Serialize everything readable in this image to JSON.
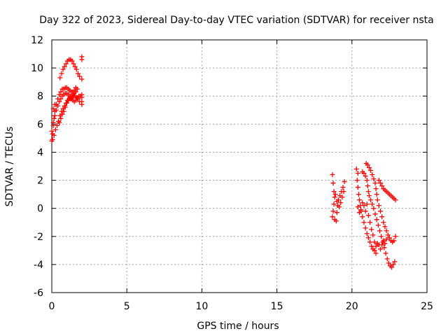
{
  "chart_data": {
    "type": "scatter",
    "title": "Day 322 of 2023, Sidereal Day-to-day VTEC variation (SDTVAR) for receiver nsta",
    "xlabel": "GPS time / hours",
    "ylabel": "SDTVAR / TECUs",
    "xlim": [
      0,
      25
    ],
    "ylim": [
      -6,
      12
    ],
    "xticks": [
      0,
      5,
      10,
      15,
      20,
      25
    ],
    "yticks": [
      -6,
      -4,
      -2,
      0,
      2,
      4,
      6,
      8,
      10,
      12
    ],
    "xtick_labels": [
      "0",
      "5",
      "10",
      "15",
      "20",
      "25"
    ],
    "ytick_labels": [
      "-6",
      "-4",
      "-2",
      "0",
      "2",
      "4",
      "6",
      "8",
      "10",
      "12"
    ],
    "grid": true,
    "marker": "+",
    "color": "#ff0000",
    "series": [
      {
        "points": [
          [
            0.0,
            4.8
          ],
          [
            0.05,
            5.3
          ],
          [
            0.1,
            5.9
          ],
          [
            0.15,
            6.4
          ],
          [
            0.2,
            6.9
          ],
          [
            0.3,
            7.4
          ],
          [
            0.4,
            7.8
          ],
          [
            0.5,
            8.1
          ],
          [
            0.6,
            8.3
          ],
          [
            0.7,
            8.5
          ],
          [
            0.8,
            8.5
          ],
          [
            0.9,
            8.6
          ],
          [
            1.0,
            8.6
          ],
          [
            1.1,
            8.5
          ],
          [
            1.2,
            8.4
          ],
          [
            1.3,
            8.3
          ],
          [
            1.4,
            8.3
          ],
          [
            1.5,
            8.4
          ],
          [
            1.6,
            8.6
          ],
          [
            1.7,
            8.5
          ],
          [
            0.0,
            5.5
          ],
          [
            0.1,
            6.1
          ],
          [
            0.2,
            6.6
          ],
          [
            0.3,
            7.0
          ],
          [
            0.4,
            7.3
          ],
          [
            0.5,
            7.6
          ],
          [
            0.6,
            7.8
          ],
          [
            0.7,
            8.0
          ],
          [
            0.8,
            8.1
          ],
          [
            0.9,
            8.2
          ],
          [
            1.0,
            8.2
          ],
          [
            1.1,
            8.1
          ],
          [
            1.2,
            8.0
          ],
          [
            1.3,
            7.8
          ],
          [
            1.4,
            7.7
          ],
          [
            1.5,
            7.6
          ],
          [
            1.6,
            7.7
          ],
          [
            1.7,
            7.9
          ],
          [
            1.8,
            8.0
          ],
          [
            1.9,
            8.0
          ],
          [
            2.0,
            7.9
          ],
          [
            0.05,
            4.9
          ],
          [
            0.15,
            5.2
          ],
          [
            0.25,
            5.6
          ],
          [
            0.35,
            5.9
          ],
          [
            0.45,
            6.2
          ],
          [
            0.55,
            6.6
          ],
          [
            0.65,
            6.9
          ],
          [
            0.75,
            7.1
          ],
          [
            0.85,
            7.3
          ],
          [
            0.95,
            7.5
          ],
          [
            1.05,
            7.7
          ],
          [
            1.15,
            7.8
          ],
          [
            1.25,
            7.8
          ],
          [
            1.35,
            7.9
          ],
          [
            1.45,
            8.0
          ],
          [
            1.55,
            8.0
          ],
          [
            1.65,
            7.9
          ],
          [
            1.75,
            7.8
          ],
          [
            1.85,
            7.6
          ],
          [
            0.5,
            6.1
          ],
          [
            0.6,
            6.4
          ],
          [
            0.7,
            6.7
          ],
          [
            0.8,
            6.9
          ],
          [
            0.9,
            7.2
          ],
          [
            1.0,
            7.5
          ],
          [
            1.1,
            7.7
          ],
          [
            1.2,
            7.9
          ],
          [
            1.3,
            8.0
          ],
          [
            1.4,
            8.1
          ],
          [
            1.5,
            8.2
          ],
          [
            1.6,
            8.3
          ],
          [
            0.55,
            9.3
          ],
          [
            0.65,
            9.6
          ],
          [
            0.75,
            9.9
          ],
          [
            0.85,
            10.1
          ],
          [
            0.95,
            10.3
          ],
          [
            1.05,
            10.5
          ],
          [
            1.15,
            10.6
          ],
          [
            1.25,
            10.6
          ],
          [
            1.35,
            10.5
          ],
          [
            1.45,
            10.3
          ],
          [
            1.55,
            10.1
          ],
          [
            1.65,
            9.9
          ],
          [
            1.75,
            9.6
          ],
          [
            1.85,
            9.4
          ],
          [
            2.0,
            10.8
          ],
          [
            2.0,
            10.6
          ],
          [
            2.0,
            9.2
          ],
          [
            2.0,
            8.1
          ],
          [
            2.0,
            7.6
          ],
          [
            2.0,
            7.4
          ],
          [
            0.1,
            7.1
          ],
          [
            0.2,
            7.4
          ]
        ]
      },
      {
        "points": [
          [
            18.7,
            2.4
          ],
          [
            18.75,
            1.8
          ],
          [
            18.8,
            1.2
          ],
          [
            18.85,
            0.8
          ],
          [
            18.8,
            0.3
          ],
          [
            18.75,
            -0.2
          ],
          [
            18.7,
            -0.6
          ],
          [
            18.85,
            -0.8
          ],
          [
            18.95,
            -0.9
          ],
          [
            19.0,
            -0.3
          ],
          [
            19.05,
            0.2
          ],
          [
            19.1,
            0.6
          ],
          [
            19.2,
            0.9
          ],
          [
            19.3,
            1.2
          ],
          [
            19.4,
            1.5
          ],
          [
            19.5,
            1.9
          ],
          [
            19.45,
            1.2
          ],
          [
            19.35,
            0.8
          ],
          [
            19.25,
            0.4
          ],
          [
            19.15,
            0.1
          ],
          [
            19.0,
            0.5
          ],
          [
            18.9,
            1.0
          ],
          [
            20.3,
            2.8
          ],
          [
            20.4,
            2.5
          ],
          [
            20.35,
            2.0
          ],
          [
            20.4,
            1.5
          ],
          [
            20.45,
            1.0
          ],
          [
            20.5,
            0.6
          ],
          [
            20.55,
            0.2
          ],
          [
            20.6,
            -0.2
          ],
          [
            20.7,
            -0.6
          ],
          [
            20.8,
            -1.0
          ],
          [
            20.9,
            -1.4
          ],
          [
            21.0,
            -1.8
          ],
          [
            21.1,
            -2.1
          ],
          [
            21.2,
            -2.4
          ],
          [
            21.3,
            -2.7
          ],
          [
            21.4,
            -2.9
          ],
          [
            21.5,
            -3.0
          ],
          [
            21.6,
            -3.2
          ],
          [
            20.7,
            2.6
          ],
          [
            20.8,
            2.5
          ],
          [
            20.9,
            2.3
          ],
          [
            21.0,
            2.0
          ],
          [
            21.05,
            1.6
          ],
          [
            21.1,
            1.2
          ],
          [
            21.15,
            0.9
          ],
          [
            21.25,
            0.6
          ],
          [
            21.35,
            0.3
          ],
          [
            21.45,
            0.0
          ],
          [
            21.55,
            -0.4
          ],
          [
            21.65,
            -0.8
          ],
          [
            21.75,
            -1.2
          ],
          [
            21.85,
            -1.6
          ],
          [
            21.95,
            -2.0
          ],
          [
            22.05,
            -2.4
          ],
          [
            22.15,
            -2.8
          ],
          [
            22.25,
            -3.2
          ],
          [
            22.35,
            -3.6
          ],
          [
            22.45,
            -3.9
          ],
          [
            22.55,
            -4.1
          ],
          [
            22.65,
            -4.2
          ],
          [
            22.75,
            -4.0
          ],
          [
            22.85,
            -3.8
          ],
          [
            20.95,
            3.2
          ],
          [
            21.05,
            3.1
          ],
          [
            21.15,
            2.9
          ],
          [
            21.25,
            2.7
          ],
          [
            21.35,
            2.4
          ],
          [
            21.45,
            2.1
          ],
          [
            21.55,
            1.8
          ],
          [
            21.6,
            1.4
          ],
          [
            21.65,
            1.0
          ],
          [
            21.7,
            0.6
          ],
          [
            21.8,
            0.2
          ],
          [
            21.9,
            -0.2
          ],
          [
            22.0,
            -0.6
          ],
          [
            22.1,
            -1.0
          ],
          [
            22.2,
            -1.3
          ],
          [
            22.3,
            -1.6
          ],
          [
            22.4,
            -1.9
          ],
          [
            22.5,
            -2.1
          ],
          [
            22.6,
            -2.3
          ],
          [
            22.7,
            -2.4
          ],
          [
            22.8,
            -2.3
          ],
          [
            22.9,
            -2.0
          ],
          [
            21.8,
            2.0
          ],
          [
            21.9,
            1.8
          ],
          [
            22.0,
            1.6
          ],
          [
            22.1,
            1.4
          ],
          [
            22.2,
            1.3
          ],
          [
            22.3,
            1.2
          ],
          [
            22.4,
            1.1
          ],
          [
            22.5,
            1.0
          ],
          [
            22.6,
            0.9
          ],
          [
            22.7,
            0.8
          ],
          [
            22.8,
            0.7
          ],
          [
            22.9,
            0.6
          ],
          [
            20.4,
            0.1
          ],
          [
            20.5,
            -0.3
          ],
          [
            20.6,
            -0.1
          ],
          [
            20.7,
            0.4
          ],
          [
            20.8,
            0.2
          ],
          [
            20.9,
            -0.2
          ],
          [
            21.0,
            0.3
          ],
          [
            21.1,
            -0.5
          ],
          [
            21.2,
            -1.0
          ],
          [
            21.3,
            -1.5
          ],
          [
            21.4,
            -1.9
          ],
          [
            21.5,
            -2.4
          ],
          [
            21.6,
            -2.7
          ],
          [
            21.7,
            -2.5
          ],
          [
            21.8,
            -2.6
          ],
          [
            21.9,
            -2.9
          ],
          [
            22.0,
            -2.6
          ],
          [
            22.1,
            -2.3
          ],
          [
            22.2,
            -2.5
          ],
          [
            22.3,
            -2.2
          ]
        ]
      }
    ]
  }
}
